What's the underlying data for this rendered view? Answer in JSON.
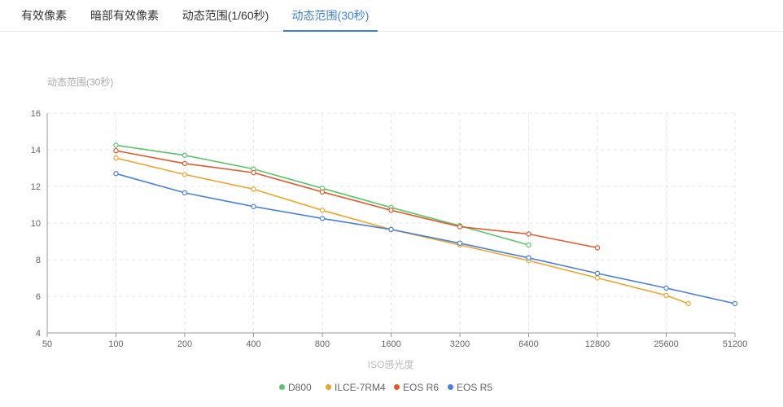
{
  "tabs": [
    {
      "label": "有效像素",
      "active": false
    },
    {
      "label": "暗部有效像素",
      "active": false
    },
    {
      "label": "动态范围(1/60秒)",
      "active": false
    },
    {
      "label": "动态范围(30秒)",
      "active": true
    }
  ],
  "colors": {
    "accent": "#3f7fd8",
    "D800": "#5ac46a",
    "ILCE-7RM4": "#eba52b",
    "EOS R6": "#e05a2d",
    "EOS R5": "#4a80d8"
  },
  "chart_data": {
    "type": "line",
    "title": "动态范围(30秒)",
    "xlabel": "ISO感光度",
    "ylabel": "",
    "x_scale": "log2",
    "x_ticks": [
      "50",
      "100",
      "200",
      "400",
      "800",
      "1600",
      "3200",
      "6400",
      "12800",
      "25600",
      "51200"
    ],
    "ylim": [
      4,
      16
    ],
    "y_ticks": [
      "4",
      "6",
      "8",
      "10",
      "12",
      "14",
      "16"
    ],
    "grid": true,
    "legend_position": "bottom",
    "series": [
      {
        "name": "D800",
        "color": "#5ac46a",
        "x": [
          100,
          200,
          400,
          800,
          1600,
          3200,
          6400
        ],
        "y": [
          14.25,
          13.7,
          12.95,
          11.9,
          10.85,
          9.85,
          8.8
        ]
      },
      {
        "name": "ILCE-7RM4",
        "color": "#eba52b",
        "x": [
          100,
          200,
          400,
          800,
          1600,
          3200,
          6400,
          12800,
          25600,
          32000
        ],
        "y": [
          13.55,
          12.65,
          11.85,
          10.7,
          9.65,
          8.8,
          7.95,
          7.0,
          6.05,
          5.6
        ]
      },
      {
        "name": "EOS R6",
        "color": "#e05a2d",
        "x": [
          100,
          200,
          400,
          800,
          1600,
          3200,
          6400,
          12800
        ],
        "y": [
          13.95,
          13.25,
          12.75,
          11.7,
          10.7,
          9.8,
          9.4,
          8.65
        ]
      },
      {
        "name": "EOS R5",
        "color": "#4a80d8",
        "x": [
          100,
          200,
          400,
          800,
          1600,
          3200,
          6400,
          12800,
          25600,
          51200
        ],
        "y": [
          12.7,
          11.65,
          10.9,
          10.25,
          9.65,
          8.9,
          8.1,
          7.25,
          6.45,
          5.6
        ]
      }
    ]
  }
}
